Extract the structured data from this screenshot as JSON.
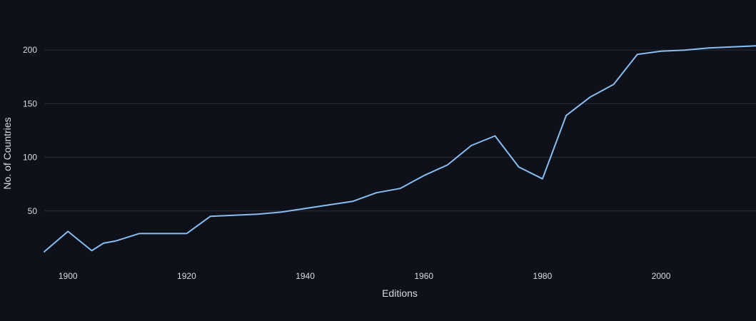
{
  "chart_data": {
    "type": "line",
    "title": "",
    "xlabel": "Editions",
    "ylabel": "No. of Countries",
    "xlim": [
      1896,
      2016
    ],
    "ylim": [
      0,
      240
    ],
    "x_ticks": [
      1900,
      1920,
      1940,
      1960,
      1980,
      2000
    ],
    "y_ticks": [
      50,
      100,
      150,
      200
    ],
    "grid": true,
    "legend": "none",
    "series": [
      {
        "color": "#87bdf0",
        "x": [
          1896,
          1900,
          1904,
          1906,
          1908,
          1912,
          1920,
          1924,
          1928,
          1932,
          1936,
          1948,
          1952,
          1956,
          1960,
          1964,
          1968,
          1972,
          1976,
          1980,
          1984,
          1988,
          1992,
          1996,
          2000,
          2004,
          2008,
          2012,
          2016
        ],
        "y": [
          12,
          31,
          13,
          20,
          22,
          29,
          29,
          45,
          46,
          47,
          49,
          59,
          67,
          71,
          83,
          93,
          111,
          120,
          91,
          80,
          139,
          156,
          168,
          196,
          199,
          200,
          202,
          203,
          204
        ]
      }
    ]
  },
  "colors": {
    "background": "#0e111a",
    "grid": "#2a2f3a",
    "text": "#d8dbe2"
  }
}
